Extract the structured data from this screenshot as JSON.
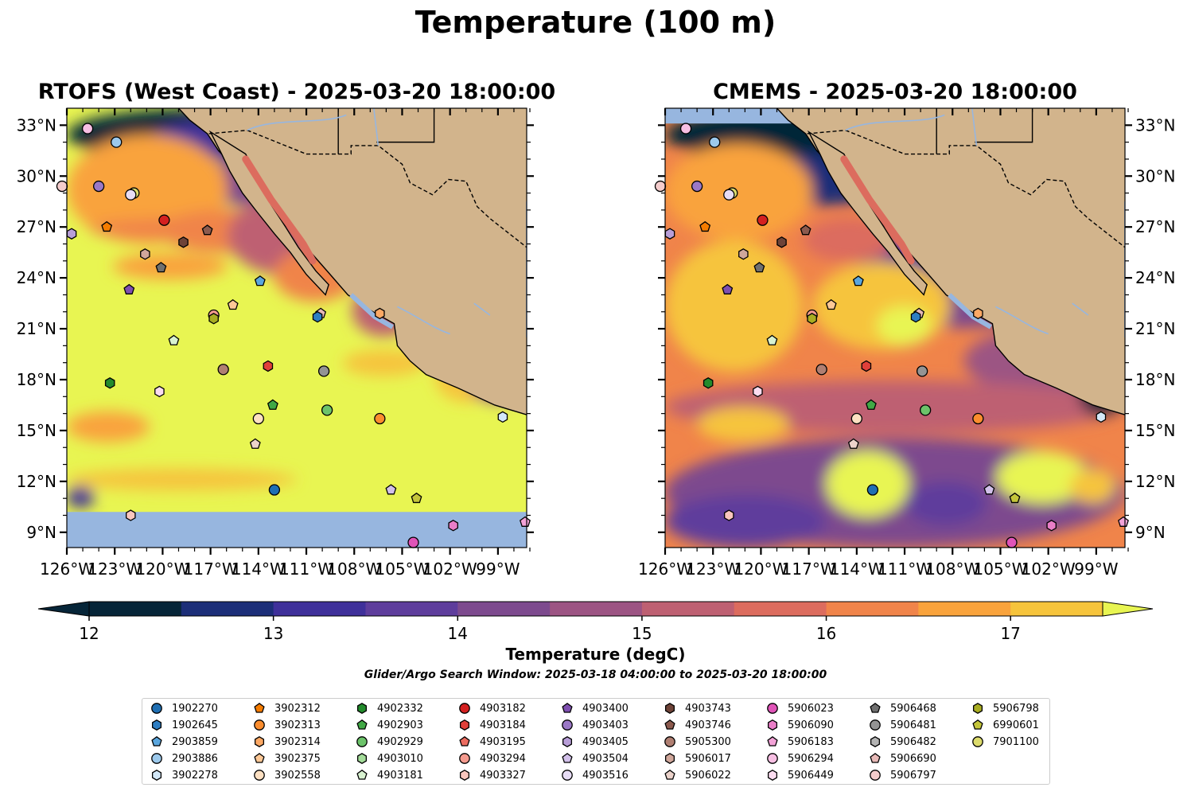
{
  "title": "Temperature (100 m)",
  "panels": [
    {
      "id": "rtofs",
      "title": "RTOFS (West Coast) - 2025-03-20 18:00:00"
    },
    {
      "id": "cmems",
      "title": "CMEMS - 2025-03-20 18:00:00"
    }
  ],
  "axes": {
    "lon_ticks": [
      "126°W",
      "123°W",
      "120°W",
      "117°W",
      "114°W",
      "111°W",
      "108°W",
      "105°W",
      "102°W",
      "99°W"
    ],
    "lat_ticks": [
      "33°N",
      "30°N",
      "27°N",
      "24°N",
      "21°N",
      "18°N",
      "15°N",
      "12°N",
      "9°N"
    ],
    "lon_values": [
      -126,
      -123,
      -120,
      -117,
      -114,
      -111,
      -108,
      -105,
      -102,
      -99
    ],
    "lat_values": [
      33,
      30,
      27,
      24,
      21,
      18,
      15,
      12,
      9
    ],
    "xlim": [
      -126,
      -97.2
    ],
    "ylim": [
      8.1,
      34
    ]
  },
  "colorbar": {
    "label": "Temperature (degC)",
    "ticks": [
      "12",
      "13",
      "14",
      "15",
      "16",
      "17"
    ],
    "tick_values": [
      12,
      13,
      14,
      15,
      16,
      17
    ],
    "range": [
      12,
      17.5
    ],
    "colors": [
      "#062538",
      "#1c2e78",
      "#3f309a",
      "#5e3d9c",
      "#7d4a8e",
      "#9c5483",
      "#be6072",
      "#dc6c5e",
      "#f0844a",
      "#f9a33c",
      "#f6c43c",
      "#e8f552"
    ]
  },
  "search_window": "Glider/Argo Search Window: 2025-03-18 04:00:00 to 2025-03-20 18:00:00",
  "legend": [
    {
      "id": "1902270",
      "marker": "circle",
      "color": "#1f6fb3"
    },
    {
      "id": "1902645",
      "marker": "hexagon",
      "color": "#2e7ec2"
    },
    {
      "id": "2903859",
      "marker": "pentagon",
      "color": "#5aa6de"
    },
    {
      "id": "2903886",
      "marker": "circle",
      "color": "#9cc9ec"
    },
    {
      "id": "3902278",
      "marker": "hexagon",
      "color": "#d3e8f8"
    },
    {
      "id": "3902312",
      "marker": "pentagon",
      "color": "#f57c00"
    },
    {
      "id": "3902313",
      "marker": "circle",
      "color": "#fb8d2e"
    },
    {
      "id": "3902314",
      "marker": "hexagon",
      "color": "#fca864"
    },
    {
      "id": "3902375",
      "marker": "pentagon",
      "color": "#fdc896"
    },
    {
      "id": "3902558",
      "marker": "circle",
      "color": "#fde0c2"
    },
    {
      "id": "4902332",
      "marker": "hexagon",
      "color": "#238b2c"
    },
    {
      "id": "4902903",
      "marker": "pentagon",
      "color": "#40a845"
    },
    {
      "id": "4902929",
      "marker": "circle",
      "color": "#6cc36a"
    },
    {
      "id": "4903010",
      "marker": "hexagon",
      "color": "#a4dc9a"
    },
    {
      "id": "4903181",
      "marker": "pentagon",
      "color": "#d8f2d0"
    },
    {
      "id": "4903182",
      "marker": "circle",
      "color": "#d42020"
    },
    {
      "id": "4903184",
      "marker": "hexagon",
      "color": "#e0403a"
    },
    {
      "id": "4903195",
      "marker": "pentagon",
      "color": "#ec6c60"
    },
    {
      "id": "4903294",
      "marker": "circle",
      "color": "#f49a8e"
    },
    {
      "id": "4903327",
      "marker": "hexagon",
      "color": "#f9c6bd"
    },
    {
      "id": "4903400",
      "marker": "pentagon",
      "color": "#7e4fb0"
    },
    {
      "id": "4903403",
      "marker": "circle",
      "color": "#9b78c6"
    },
    {
      "id": "4903405",
      "marker": "hexagon",
      "color": "#b89ed8"
    },
    {
      "id": "4903504",
      "marker": "pentagon",
      "color": "#d2c0ea"
    },
    {
      "id": "4903516",
      "marker": "circle",
      "color": "#e7dcf5"
    },
    {
      "id": "4903743",
      "marker": "hexagon",
      "color": "#6e4338"
    },
    {
      "id": "4903746",
      "marker": "pentagon",
      "color": "#8c5a4e"
    },
    {
      "id": "5905300",
      "marker": "circle",
      "color": "#b07f72"
    },
    {
      "id": "5906017",
      "marker": "hexagon",
      "color": "#d0a79b"
    },
    {
      "id": "5906022",
      "marker": "pentagon",
      "color": "#ecd3cb"
    },
    {
      "id": "5906023",
      "marker": "circle",
      "color": "#e054b8"
    },
    {
      "id": "5906090",
      "marker": "hexagon",
      "color": "#ea7ec8"
    },
    {
      "id": "5906183",
      "marker": "pentagon",
      "color": "#f3a3d8"
    },
    {
      "id": "5906294",
      "marker": "circle",
      "color": "#f7bfe3"
    },
    {
      "id": "5906449",
      "marker": "hexagon",
      "color": "#fbdcf0"
    },
    {
      "id": "5906468",
      "marker": "pentagon",
      "color": "#6f6f6f"
    },
    {
      "id": "5906481",
      "marker": "circle",
      "color": "#949494"
    },
    {
      "id": "5906482",
      "marker": "hexagon",
      "color": "#b4b4b4"
    },
    {
      "id": "5906690",
      "marker": "pentagon",
      "color": "#e7b9b7"
    },
    {
      "id": "5906797",
      "marker": "circle",
      "color": "#f4cccc"
    },
    {
      "id": "5906798",
      "marker": "hexagon",
      "color": "#a9ad22"
    },
    {
      "id": "6990601",
      "marker": "pentagon",
      "color": "#c4c53a"
    },
    {
      "id": "7901100",
      "marker": "circle",
      "color": "#dcdb6c"
    }
  ],
  "chart_data": {
    "type": "scatter",
    "title": "Temperature (100 m)",
    "xlabel": "",
    "ylabel": "",
    "colorbar_label": "Temperature (degC)",
    "colorbar_range": [
      12,
      17.5
    ],
    "xlim": [
      -126,
      -97.2
    ],
    "ylim": [
      8.1,
      34
    ],
    "points": [
      {
        "id": "5906294",
        "lon": -124.7,
        "lat": 32.8
      },
      {
        "id": "2903886",
        "lon": -122.9,
        "lat": 32.0
      },
      {
        "id": "5906797",
        "lon": -126.3,
        "lat": 29.4
      },
      {
        "id": "4903403",
        "lon": -124.0,
        "lat": 29.4
      },
      {
        "id": "7901100",
        "lon": -121.8,
        "lat": 29.0
      },
      {
        "id": "4903516",
        "lon": -122.0,
        "lat": 28.9
      },
      {
        "id": "4903182",
        "lon": -119.9,
        "lat": 27.4
      },
      {
        "id": "3902312",
        "lon": -123.5,
        "lat": 27.0
      },
      {
        "id": "4903746",
        "lon": -117.2,
        "lat": 26.8
      },
      {
        "id": "4903405",
        "lon": -125.7,
        "lat": 26.6
      },
      {
        "id": "4903743",
        "lon": -118.7,
        "lat": 26.1
      },
      {
        "id": "5906017",
        "lon": -121.1,
        "lat": 25.4
      },
      {
        "id": "5906468",
        "lon": -120.1,
        "lat": 24.6
      },
      {
        "id": "2903859",
        "lon": -113.9,
        "lat": 23.8
      },
      {
        "id": "4903400",
        "lon": -122.1,
        "lat": 23.3
      },
      {
        "id": "3902375",
        "lon": -115.6,
        "lat": 22.4
      },
      {
        "id": "5906690",
        "lon": -110.1,
        "lat": 21.9
      },
      {
        "id": "1902645",
        "lon": -110.3,
        "lat": 21.7
      },
      {
        "id": "4903294",
        "lon": -116.8,
        "lat": 21.8
      },
      {
        "id": "5906798",
        "lon": -116.8,
        "lat": 21.6
      },
      {
        "id": "3902314",
        "lon": -106.4,
        "lat": 21.9
      },
      {
        "id": "4903181",
        "lon": -119.3,
        "lat": 20.3
      },
      {
        "id": "4903184",
        "lon": -113.4,
        "lat": 18.8
      },
      {
        "id": "5905300",
        "lon": -116.2,
        "lat": 18.6
      },
      {
        "id": "5906481",
        "lon": -109.9,
        "lat": 18.5
      },
      {
        "id": "4902332",
        "lon": -123.3,
        "lat": 17.8
      },
      {
        "id": "5906449",
        "lon": -120.2,
        "lat": 17.3
      },
      {
        "id": "4902903",
        "lon": -113.1,
        "lat": 16.5
      },
      {
        "id": "4902929",
        "lon": -109.7,
        "lat": 16.2
      },
      {
        "id": "3902558",
        "lon": -114.0,
        "lat": 15.7
      },
      {
        "id": "3902313",
        "lon": -106.4,
        "lat": 15.7
      },
      {
        "id": "3902278",
        "lon": -98.7,
        "lat": 15.8
      },
      {
        "id": "5906022",
        "lon": -114.2,
        "lat": 14.2
      },
      {
        "id": "1902270",
        "lon": -113.0,
        "lat": 11.5
      },
      {
        "id": "4903504",
        "lon": -105.7,
        "lat": 11.5
      },
      {
        "id": "6990601",
        "lon": -104.1,
        "lat": 11.0
      },
      {
        "id": "4903327",
        "lon": -122.0,
        "lat": 10.0
      },
      {
        "id": "5906090",
        "lon": -101.8,
        "lat": 9.4
      },
      {
        "id": "5906183",
        "lon": -97.3,
        "lat": 9.6
      },
      {
        "id": "5906023",
        "lon": -104.3,
        "lat": 8.4
      }
    ]
  }
}
